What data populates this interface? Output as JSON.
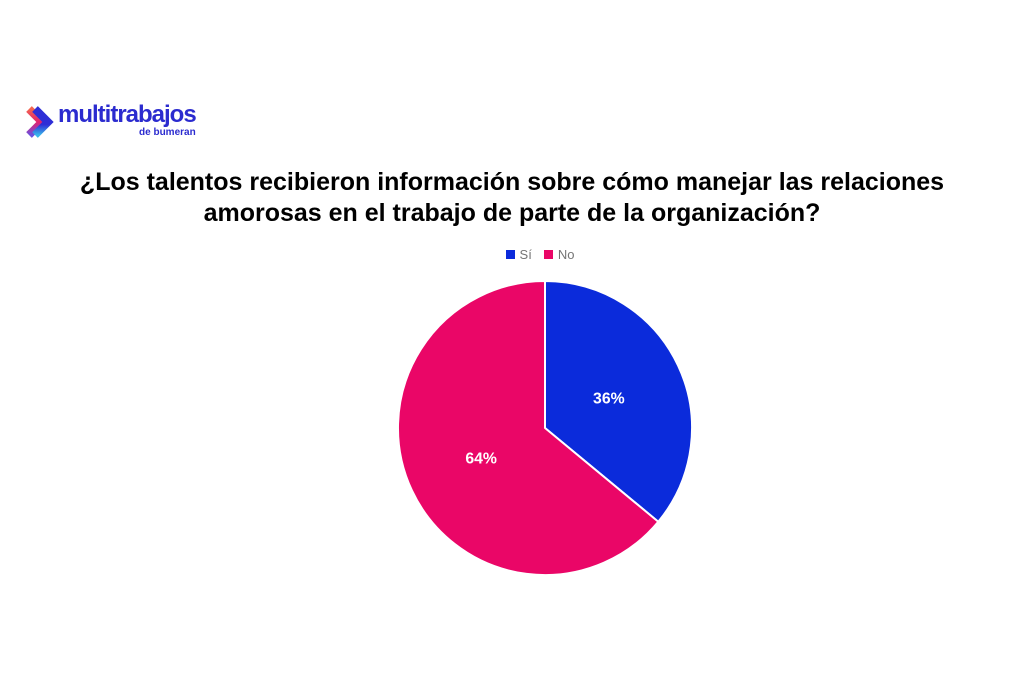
{
  "page": {
    "background": "#FFFFFF"
  },
  "logo": {
    "brand": "multitrabajos",
    "sub_brand": "de bumeran",
    "brand_color": "#2B2BCF",
    "icon": "double-chevron-right",
    "icon_colors": [
      "#F4654F",
      "#E02070",
      "#6A51E0",
      "#2E2ED6"
    ]
  },
  "title": {
    "line1": "¿Los talentos recibieron información sobre cómo manejar las relaciones",
    "line2": "amorosas en el trabajo de parte de la organización?"
  },
  "chart_data": {
    "type": "pie",
    "title": "¿Los talentos recibieron información sobre cómo manejar las relaciones amorosas en el trabajo de parte de la organización?",
    "categories": [
      "Sí",
      "No"
    ],
    "values": [
      36,
      64
    ],
    "labels": [
      "36%",
      "64%"
    ],
    "colors": [
      "#0B2BDB",
      "#EA0667"
    ],
    "slice_label_color": "#FFFFFF",
    "slice_border_color": "#FFFFFF",
    "legend_position": "top",
    "legend_text_color": "#757575",
    "start_angle_deg": 0,
    "direction": "clockwise"
  }
}
